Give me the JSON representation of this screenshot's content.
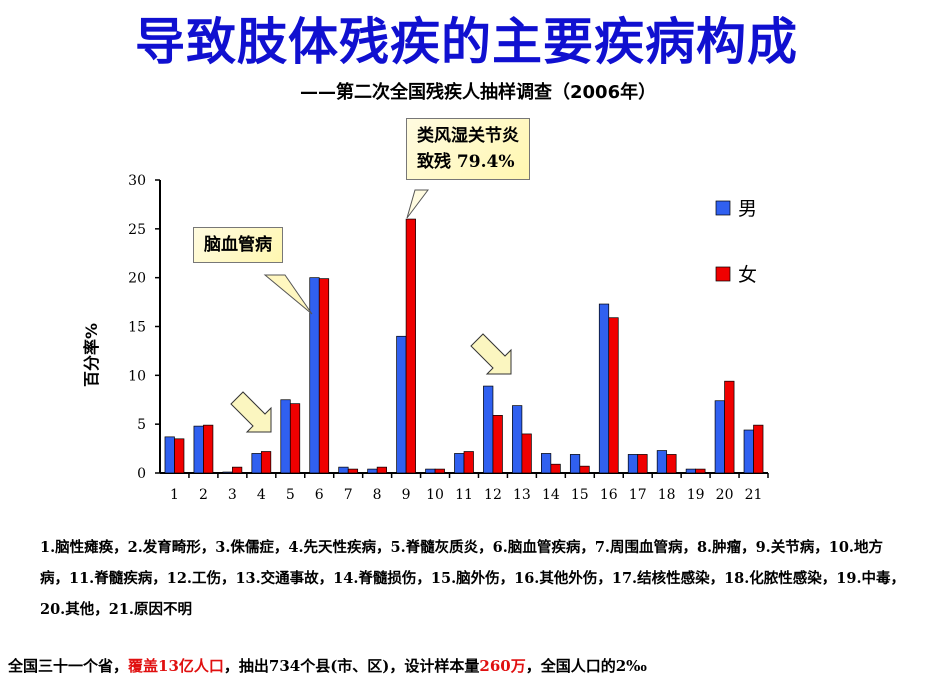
{
  "title": "导致肢体残疾的主要疾病构成",
  "subtitle": "——第二次全国残疾人抽样调查（2006年）",
  "callouts": {
    "arthritis_line1": "类风湿关节炎",
    "arthritis_line2": "致残 79.4%",
    "stroke": "脑血管病"
  },
  "notes": "1.脑性瘫痪，2.发育畸形，3.侏儒症，4.先天性疾病，5.脊髓灰质炎，6.脑血管疾病，7.周围血管病，8.肿瘤，9.关节病，10.地方病，11.脊髓疾病，12.工伤，13.交通事故，14.脊髓损伤，15.脑外伤，16.其他外伤，17.结核性感染，18.化脓性感染，19.中毒，20.其他，21.原因不明",
  "footer": {
    "part1": "全国三十一个省，",
    "part2": "覆盖13亿人口",
    "part3": "，抽出734个县(市、区)，设计样本量",
    "part4": "260万",
    "part5": "，全国人口的2‰"
  },
  "chart_data": {
    "type": "bar",
    "ylabel": "百分率%",
    "ylim": [
      0,
      30
    ],
    "yticks": [
      "0",
      "5",
      "10",
      "15",
      "20",
      "25",
      "30"
    ],
    "categories": [
      "1",
      "2",
      "3",
      "4",
      "5",
      "6",
      "7",
      "8",
      "9",
      "10",
      "11",
      "12",
      "13",
      "14",
      "15",
      "16",
      "17",
      "18",
      "19",
      "20",
      "21"
    ],
    "legend_position": "right",
    "series": [
      {
        "name": "男",
        "color": "#3060f0",
        "values": [
          3.7,
          4.8,
          0.1,
          2.0,
          7.5,
          20.0,
          0.6,
          0.4,
          14.0,
          0.4,
          2.0,
          8.9,
          6.9,
          2.0,
          1.9,
          17.3,
          1.9,
          2.3,
          0.4,
          7.4,
          4.4
        ]
      },
      {
        "name": "女",
        "color": "#f00000",
        "values": [
          3.5,
          4.9,
          0.6,
          2.2,
          7.1,
          19.9,
          0.4,
          0.6,
          26.0,
          0.4,
          2.2,
          5.9,
          4.0,
          0.9,
          0.7,
          15.9,
          1.9,
          1.9,
          0.4,
          9.4,
          4.9
        ]
      }
    ]
  }
}
